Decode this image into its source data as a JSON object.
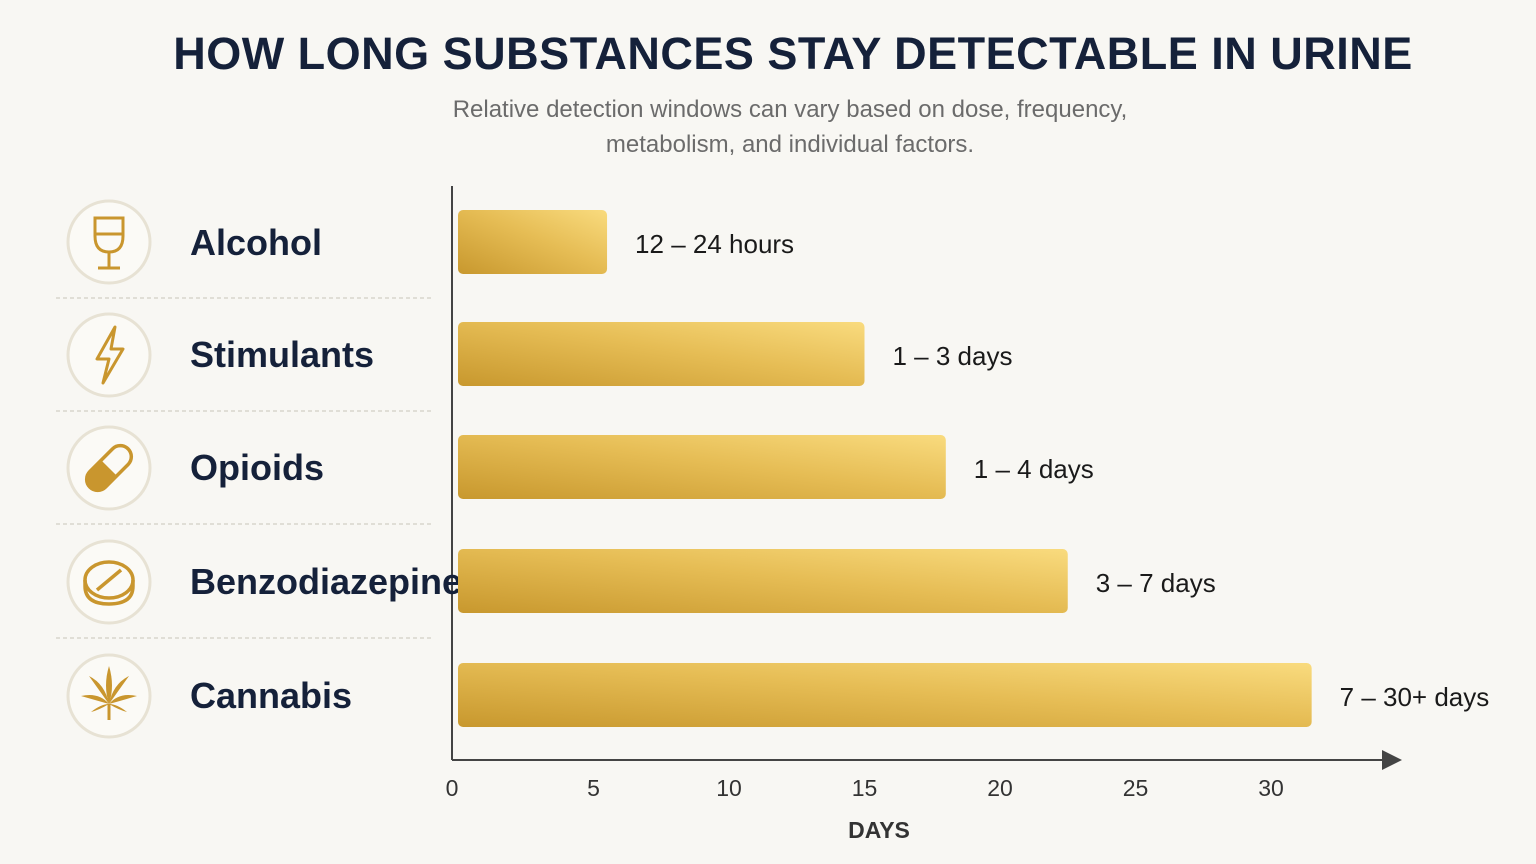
{
  "chart_data": {
    "type": "bar",
    "orientation": "horizontal",
    "title": "HOW LONG SUBSTANCES STAY DETECTABLE IN URINE",
    "subtitle": [
      "Relative detection windows can vary based on dose, frequency,",
      "metabolism, and individual factors."
    ],
    "xlabel": "DAYS",
    "xlim": [
      0,
      33
    ],
    "xticks": [
      0,
      5,
      10,
      15,
      20,
      25,
      30
    ],
    "grid": false,
    "categories": [
      "Alcohol",
      "Stimulants",
      "Opioids",
      "Benzodiazepines",
      "Cannabis"
    ],
    "values": [
      5.5,
      15,
      18,
      22.5,
      31.5
    ],
    "value_labels": [
      "12 – 24 hours",
      "1 – 3 days",
      "1 – 4 days",
      "3 – 7 days",
      "7 – 30+ days"
    ],
    "icons": [
      "wine-glass-icon",
      "lightning-bolt-icon",
      "pill-capsule-icon",
      "tablet-icon",
      "cannabis-leaf-icon"
    ],
    "colors": {
      "bar_dark": "#c8982e",
      "bar_light": "#f8d87a",
      "icon": "#c9962e",
      "text": "#15213a"
    }
  }
}
